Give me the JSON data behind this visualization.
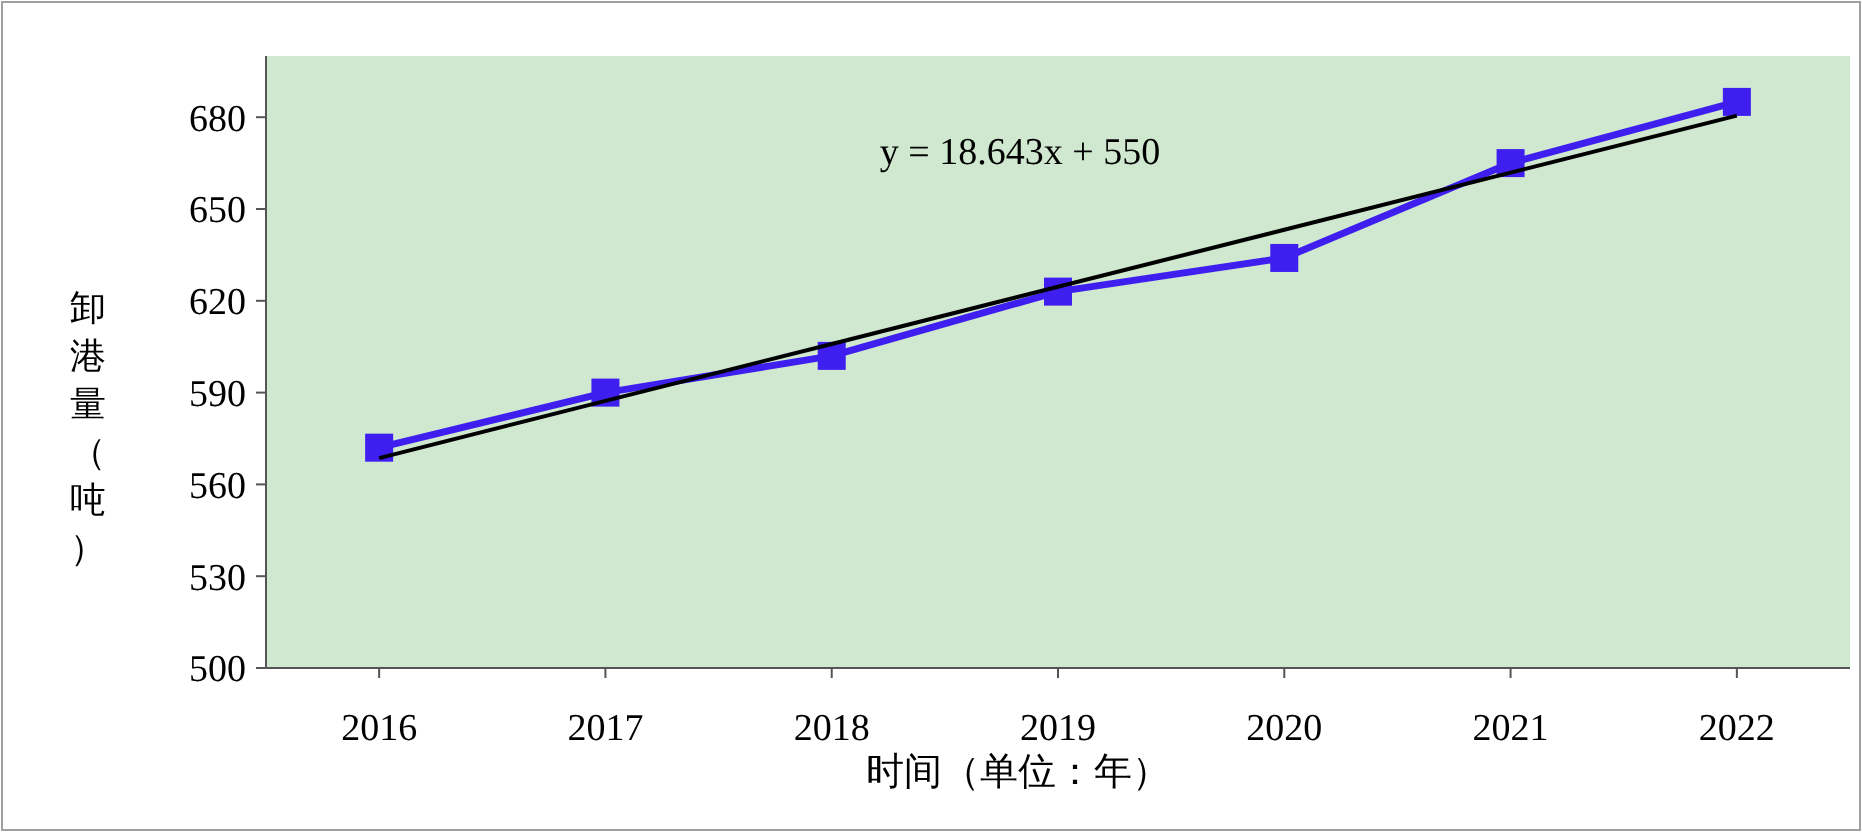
{
  "chart_data": {
    "type": "line",
    "xlabel": "时间（单位：年）",
    "ylabel": "卸港量（吨）",
    "categories": [
      "2016",
      "2017",
      "2018",
      "2019",
      "2020",
      "2021",
      "2022"
    ],
    "series": [
      {
        "color": "#3f1ff0",
        "marker": "square",
        "values": [
          572,
          590,
          602,
          623,
          634,
          665,
          685
        ]
      },
      {
        "color": "#000000",
        "marker": "none",
        "values": [
          568.6,
          587.3,
          605.9,
          624.6,
          643.2,
          661.9,
          680.5
        ]
      }
    ],
    "ylim": [
      500,
      700
    ],
    "yticks": [
      500,
      530,
      560,
      590,
      620,
      650,
      680
    ],
    "grid": false,
    "annotations": [
      "y = 18.643x + 550"
    ]
  }
}
